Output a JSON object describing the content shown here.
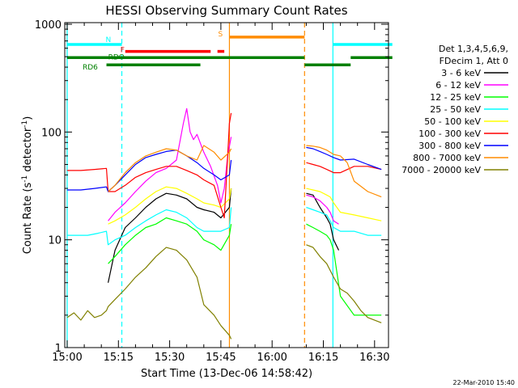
{
  "chart_data": {
    "type": "line",
    "title": "HESSI Observing Summary Count Rates",
    "xlabel": "Start Time (13-Dec-06 14:58:42)",
    "ylabel_main": "Count Rate (s",
    "ylabel_sup1": "-1",
    "ylabel_mid": " detector",
    "ylabel_sup2": "-1",
    "ylabel_end": ")",
    "y_scale": "log",
    "ylim": [
      1,
      1000
    ],
    "xlim_minutes": [
      0,
      97
    ],
    "x_ticks": [
      {
        "m": 0,
        "label": "15:00"
      },
      {
        "m": 15,
        "label": "15:15"
      },
      {
        "m": 30,
        "label": "15:30"
      },
      {
        "m": 45,
        "label": "15:45"
      },
      {
        "m": 60,
        "label": "16:00"
      },
      {
        "m": 75,
        "label": "16:15"
      },
      {
        "m": 90,
        "label": "16:30"
      }
    ],
    "y_ticks": [
      {
        "v": 1,
        "label": "1"
      },
      {
        "v": 10,
        "label": "10"
      },
      {
        "v": 100,
        "label": "100"
      },
      {
        "v": 1000,
        "label": "1000"
      }
    ],
    "legend_header": [
      "Det 1,3,4,5,6,9,",
      "FDecim 1, Att 0"
    ],
    "legend_position": "right",
    "series": [
      {
        "name": "3 - 6 keV",
        "color": "#000000",
        "x": [
          0,
          11.5,
          12,
          14,
          17,
          20,
          23,
          26,
          29,
          32,
          35,
          38,
          40,
          43,
          45,
          47.5,
          48
        ],
        "y": [
          null,
          null,
          4,
          8,
          13,
          16,
          20,
          24,
          27,
          26,
          24,
          20,
          19,
          18,
          16,
          20,
          30
        ]
      },
      {
        "name": "6 - 12 keV",
        "color": "#ff00ff",
        "x": [
          0,
          11.5,
          12,
          14,
          17,
          20,
          23,
          26,
          29,
          32,
          34,
          35,
          36,
          37,
          38,
          40,
          42,
          44,
          45,
          46,
          47,
          48
        ],
        "y": [
          null,
          null,
          15,
          18,
          22,
          28,
          35,
          42,
          46,
          55,
          120,
          165,
          100,
          85,
          95,
          65,
          48,
          32,
          22,
          30,
          60,
          90
        ]
      },
      {
        "name": "12 - 25 keV",
        "color": "#00ff00",
        "x": [
          0,
          11.5,
          12,
          14,
          17,
          20,
          23,
          26,
          29,
          32,
          35,
          38,
          40,
          43,
          45,
          47.5,
          48
        ],
        "y": [
          null,
          null,
          6,
          7,
          9,
          11,
          13,
          14,
          16,
          15,
          14,
          12,
          10,
          9,
          8,
          11,
          14
        ]
      },
      {
        "name": "25 - 50 keV",
        "color": "#00ffff",
        "x": [
          0,
          3,
          6,
          9,
          11.5,
          12,
          14,
          17,
          20,
          23,
          26,
          29,
          32,
          35,
          38,
          40,
          43,
          45,
          47.5,
          48
        ],
        "y": [
          11,
          11,
          11,
          11.5,
          12,
          9,
          10,
          11,
          13,
          15,
          17,
          19,
          18,
          16,
          13,
          12,
          12,
          12,
          13,
          20
        ]
      },
      {
        "name": "50 - 100 keV",
        "color": "#ffff00",
        "x": [
          0,
          11.5,
          12,
          14,
          17,
          20,
          23,
          26,
          29,
          32,
          35,
          38,
          40,
          43,
          45,
          47.5,
          48
        ],
        "y": [
          null,
          null,
          14,
          15,
          17,
          20,
          24,
          28,
          31,
          30,
          27,
          24,
          22,
          21,
          20,
          24,
          30
        ]
      },
      {
        "name": "100 - 300 keV",
        "color": "#ff0000",
        "x": [
          0,
          4,
          8,
          11.5,
          12,
          14,
          17,
          20,
          23,
          26,
          29,
          32,
          35,
          38,
          40,
          43,
          45,
          46,
          47,
          47.5,
          48
        ],
        "y": [
          44,
          44,
          45,
          46,
          28,
          28,
          32,
          38,
          42,
          45,
          48,
          48,
          44,
          40,
          36,
          32,
          20,
          16,
          60,
          120,
          150
        ]
      },
      {
        "name": "300 - 800 keV",
        "color": "#0000ff",
        "x": [
          0,
          4,
          8,
          11.5,
          12,
          14,
          17,
          20,
          23,
          26,
          29,
          32,
          35,
          38,
          40,
          43,
          45,
          47.5,
          48
        ],
        "y": [
          29,
          29,
          30,
          31,
          28,
          32,
          40,
          50,
          58,
          62,
          66,
          68,
          60,
          52,
          46,
          40,
          36,
          40,
          55
        ]
      },
      {
        "name": "800 - 7000 keV",
        "color": "#ff8c00",
        "x": [
          0,
          11.5,
          12,
          14,
          17,
          20,
          23,
          26,
          29,
          32,
          35,
          38,
          40,
          43,
          45,
          47.5,
          48
        ],
        "y": [
          null,
          null,
          28,
          32,
          42,
          52,
          60,
          65,
          70,
          68,
          60,
          55,
          75,
          65,
          55,
          65,
          70
        ]
      },
      {
        "name": "7000 - 20000 keV",
        "color": "#808000",
        "x": [
          0,
          2,
          4,
          6,
          8,
          10,
          11.5,
          12,
          14,
          17,
          20,
          23,
          26,
          29,
          32,
          35,
          38,
          40,
          43,
          45,
          47.5,
          48
        ],
        "y": [
          1.9,
          2.1,
          1.8,
          2.2,
          1.9,
          2.0,
          2.2,
          2.4,
          2.8,
          3.5,
          4.5,
          5.5,
          7,
          8.5,
          8,
          6.5,
          4.5,
          2.5,
          2.0,
          1.6,
          1.3,
          1.2
        ]
      }
    ],
    "series_after_gap": [
      {
        "color": "#000000",
        "x": [
          70,
          72,
          74,
          76,
          77,
          78,
          79.5,
          80
        ],
        "y": [
          27,
          26,
          20,
          16,
          14,
          10,
          8,
          null
        ]
      },
      {
        "color": "#ff00ff",
        "x": [
          70,
          72,
          74,
          76,
          77,
          78,
          79.5,
          80
        ],
        "y": [
          26,
          25,
          23,
          20,
          18,
          15,
          14,
          null
        ]
      },
      {
        "color": "#00ff00",
        "x": [
          70,
          72,
          74,
          76,
          77,
          78,
          80,
          84,
          88,
          92
        ],
        "y": [
          14,
          13,
          12,
          11,
          10,
          8,
          3,
          2,
          2,
          2
        ]
      },
      {
        "color": "#00ffff",
        "x": [
          70,
          72,
          74,
          76,
          77,
          78,
          80,
          84,
          88,
          92
        ],
        "y": [
          20,
          19,
          18,
          17,
          15,
          13,
          12,
          12,
          11,
          11
        ]
      },
      {
        "color": "#ffff00",
        "x": [
          70,
          72,
          74,
          76,
          77,
          78,
          80,
          84,
          88,
          92
        ],
        "y": [
          30,
          29,
          28,
          26,
          25,
          22,
          18,
          17,
          16,
          15
        ]
      },
      {
        "color": "#ff0000",
        "x": [
          70,
          72,
          74,
          76,
          78,
          80,
          84,
          88,
          92
        ],
        "y": [
          52,
          50,
          48,
          45,
          42,
          42,
          48,
          48,
          45
        ]
      },
      {
        "color": "#0000ff",
        "x": [
          70,
          72,
          74,
          76,
          78,
          80,
          84,
          88,
          92
        ],
        "y": [
          72,
          70,
          66,
          62,
          58,
          55,
          56,
          50,
          45
        ]
      },
      {
        "color": "#ff8c00",
        "x": [
          70,
          72,
          74,
          76,
          78,
          80,
          82,
          84,
          88,
          92
        ],
        "y": [
          75,
          74,
          72,
          68,
          62,
          60,
          52,
          35,
          28,
          25
        ]
      },
      {
        "color": "#808000",
        "x": [
          70,
          72,
          74,
          76,
          78,
          80,
          82,
          84,
          86,
          88,
          92
        ],
        "y": [
          9,
          8.5,
          7,
          6,
          4.5,
          3.5,
          3.2,
          2.7,
          2.2,
          1.9,
          1.7
        ]
      }
    ],
    "vertical_markers": [
      {
        "m": 0,
        "color": "#00ffff",
        "style": "solid"
      },
      {
        "m": 16,
        "color": "#00ffff",
        "style": "dashed"
      },
      {
        "m": 47.5,
        "color": "#ff8c00",
        "style": "solid"
      },
      {
        "m": 69.5,
        "color": "#ff8c00",
        "style": "dashed"
      },
      {
        "m": 77.8,
        "color": "#00ffff",
        "style": "solid"
      },
      {
        "m": 95.2,
        "color": "#00ffff",
        "style": "dashed"
      }
    ],
    "flag_bars": [
      {
        "label": "N",
        "color": "#00ffff",
        "y": 650,
        "segments": [
          [
            0,
            16
          ],
          [
            77.8,
            95.2
          ]
        ]
      },
      {
        "label": "F",
        "color": "#ff0000",
        "y": 560,
        "segments": [
          [
            17,
            42
          ],
          [
            44,
            46
          ]
        ]
      },
      {
        "label": "S",
        "color": "#ff8c00",
        "y": 760,
        "segments": [
          [
            47.5,
            69.5
          ]
        ]
      },
      {
        "label": "RDO",
        "color": "#008000",
        "y": 490,
        "segments": [
          [
            0,
            69.5
          ],
          [
            83,
            95.2
          ]
        ]
      },
      {
        "label": "RD6",
        "color": "#008000",
        "y": 420,
        "segments": [
          [
            11.5,
            39
          ],
          [
            69.5,
            83
          ]
        ]
      }
    ],
    "footer_date": "22-Mar-2010 15:40"
  }
}
